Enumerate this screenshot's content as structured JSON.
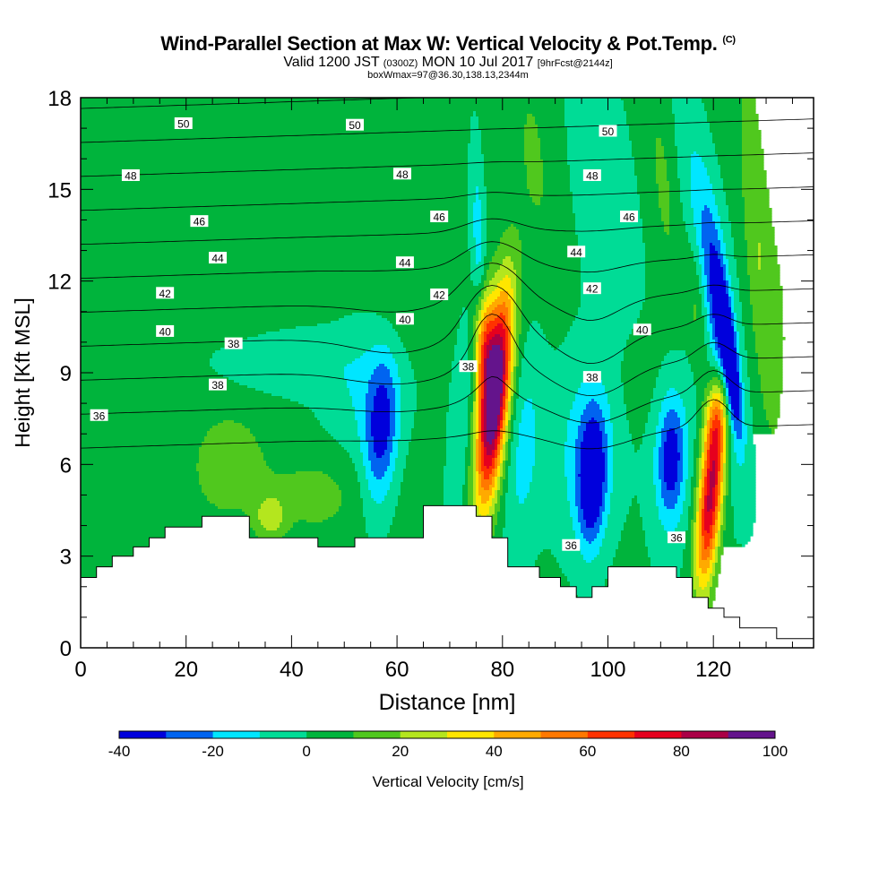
{
  "chart_data": {
    "type": "heatmap",
    "title": "Wind-Parallel Section at Max W: Vertical Velocity & Pot.Temp.",
    "title_mark": "(C)",
    "subtitle_parts": [
      "Valid 1200 JST",
      "(0300Z)",
      "MON 10 Jul 2017",
      "[9hrFcst@2144z]"
    ],
    "subtitle2": "boxWmax=97@36.30,138.13,2344m",
    "xlabel": "Distance [nm]",
    "ylabel": "Height [Kft MSL]",
    "xlim": [
      0,
      139
    ],
    "ylim": [
      0,
      18
    ],
    "x_ticks": [
      "0",
      "20",
      "40",
      "60",
      "80",
      "100",
      "120"
    ],
    "y_ticks": [
      "0",
      "3",
      "6",
      "9",
      "12",
      "15",
      "18"
    ],
    "colorbar_label": "Vertical Velocity [cm/s]",
    "colorbar_ticks": [
      "-40",
      "-20",
      "0",
      "20",
      "40",
      "60",
      "80",
      "100"
    ],
    "colorbar_bounds": [
      -40,
      100
    ],
    "colors": [
      "#0000dc",
      "#0064f0",
      "#00e6ff",
      "#00dc96",
      "#00b43c",
      "#50c81e",
      "#b4e61e",
      "#ffe600",
      "#ffaa00",
      "#ff7800",
      "#ff3200",
      "#e6001e",
      "#aa0046",
      "#64148c"
    ],
    "terrain_kft": [
      [
        0,
        2.3
      ],
      [
        3,
        2.3
      ],
      [
        3,
        2.65
      ],
      [
        6,
        2.65
      ],
      [
        6,
        3.0
      ],
      [
        10,
        3.0
      ],
      [
        10,
        3.3
      ],
      [
        13,
        3.3
      ],
      [
        13,
        3.6
      ],
      [
        16,
        3.6
      ],
      [
        16,
        3.95
      ],
      [
        23,
        3.95
      ],
      [
        23,
        4.3
      ],
      [
        32,
        4.3
      ],
      [
        32,
        3.6
      ],
      [
        45,
        3.6
      ],
      [
        45,
        3.3
      ],
      [
        52,
        3.3
      ],
      [
        52,
        3.6
      ],
      [
        65,
        3.6
      ],
      [
        65,
        4.65
      ],
      [
        75,
        4.65
      ],
      [
        75,
        4.3
      ],
      [
        78,
        4.3
      ],
      [
        78,
        3.6
      ],
      [
        81,
        3.6
      ],
      [
        81,
        2.65
      ],
      [
        87,
        2.65
      ],
      [
        87,
        2.3
      ],
      [
        91,
        2.3
      ],
      [
        91,
        2.0
      ],
      [
        94,
        2.0
      ],
      [
        94,
        1.65
      ],
      [
        97,
        1.65
      ],
      [
        97,
        2.0
      ],
      [
        100,
        2.0
      ],
      [
        100,
        2.65
      ],
      [
        113,
        2.65
      ],
      [
        113,
        2.3
      ],
      [
        116,
        2.3
      ],
      [
        116,
        1.65
      ],
      [
        119,
        1.65
      ],
      [
        119,
        1.3
      ],
      [
        122,
        1.3
      ],
      [
        122,
        1.0
      ],
      [
        125,
        1.0
      ],
      [
        125,
        0.65
      ],
      [
        132,
        0.65
      ],
      [
        132,
        0.3
      ],
      [
        139,
        0.3
      ]
    ],
    "theta_labels": [
      {
        "v": "50",
        "x": 19.5,
        "y": 17.15
      },
      {
        "v": "50",
        "x": 52,
        "y": 17.1
      },
      {
        "v": "50",
        "x": 100,
        "y": 16.9
      },
      {
        "v": "48",
        "x": 9.5,
        "y": 15.45
      },
      {
        "v": "48",
        "x": 61,
        "y": 15.5
      },
      {
        "v": "48",
        "x": 97,
        "y": 15.45
      },
      {
        "v": "46",
        "x": 22.5,
        "y": 13.95
      },
      {
        "v": "46",
        "x": 68,
        "y": 14.1
      },
      {
        "v": "46",
        "x": 104,
        "y": 14.1
      },
      {
        "v": "44",
        "x": 26,
        "y": 12.75
      },
      {
        "v": "44",
        "x": 61.5,
        "y": 12.6
      },
      {
        "v": "44",
        "x": 94,
        "y": 12.95
      },
      {
        "v": "42",
        "x": 16,
        "y": 11.6
      },
      {
        "v": "42",
        "x": 68,
        "y": 11.55
      },
      {
        "v": "42",
        "x": 97,
        "y": 11.75
      },
      {
        "v": "40",
        "x": 16,
        "y": 10.35
      },
      {
        "v": "40",
        "x": 61.5,
        "y": 10.75
      },
      {
        "v": "40",
        "x": 106.5,
        "y": 10.4
      },
      {
        "v": "38",
        "x": 29,
        "y": 9.95
      },
      {
        "v": "38",
        "x": 73.5,
        "y": 9.2
      },
      {
        "v": "38",
        "x": 97,
        "y": 8.85
      },
      {
        "v": "38",
        "x": 26,
        "y": 8.6
      },
      {
        "v": "36",
        "x": 3.5,
        "y": 7.6
      },
      {
        "v": "36",
        "x": 93,
        "y": 3.35
      },
      {
        "v": "36",
        "x": 113,
        "y": 3.6
      }
    ],
    "grid": false
  }
}
